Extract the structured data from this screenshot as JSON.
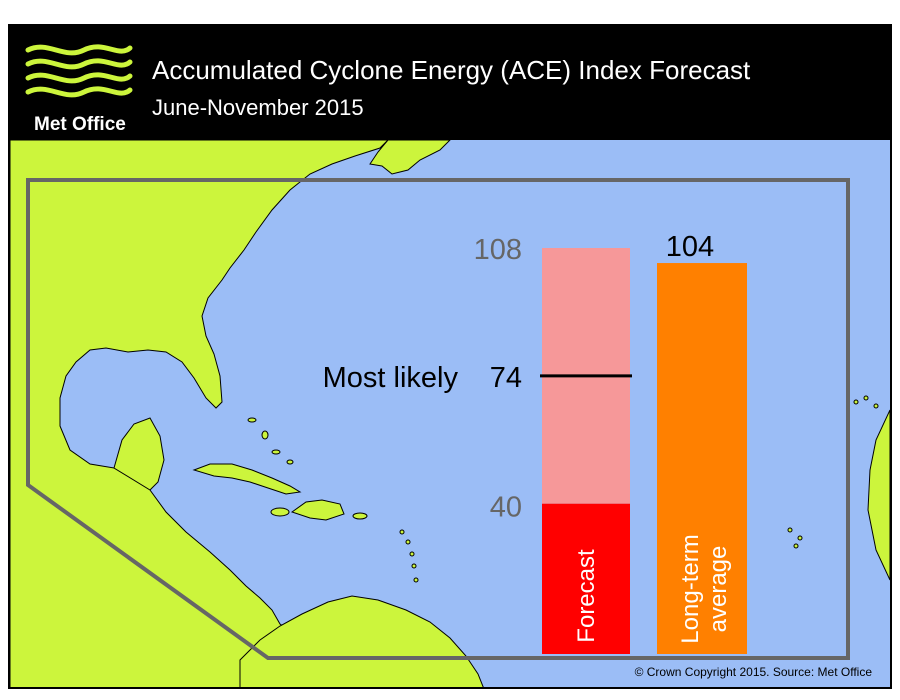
{
  "header": {
    "logo_label": "Met Office",
    "title": "Accumulated Cyclone Energy (ACE) Index Forecast",
    "subtitle": "June-November 2015"
  },
  "colors": {
    "land": "#ccf53c",
    "sea": "#9bbdf6",
    "forecast_range": "#f69899",
    "forecast_base": "#ff0000",
    "long_term": "#ff8000",
    "region_outline": "#666666"
  },
  "chart_data": {
    "type": "bar",
    "title": "Accumulated Cyclone Energy (ACE) Index Forecast",
    "subtitle": "June-November 2015",
    "ylim": [
      0,
      108
    ],
    "bars": [
      {
        "name": "Forecast",
        "range_low": 40,
        "range_high": 108,
        "most_likely": 74,
        "low_label": "40",
        "high_label": "108",
        "most_likely_label": "Most likely",
        "most_likely_value_label": "74"
      },
      {
        "name_line1": "Long-term",
        "name_line2": "average",
        "value": 104,
        "value_label": "104"
      }
    ]
  },
  "footer": {
    "copyright": "© Crown Copyright 2015. Source: Met Office"
  }
}
